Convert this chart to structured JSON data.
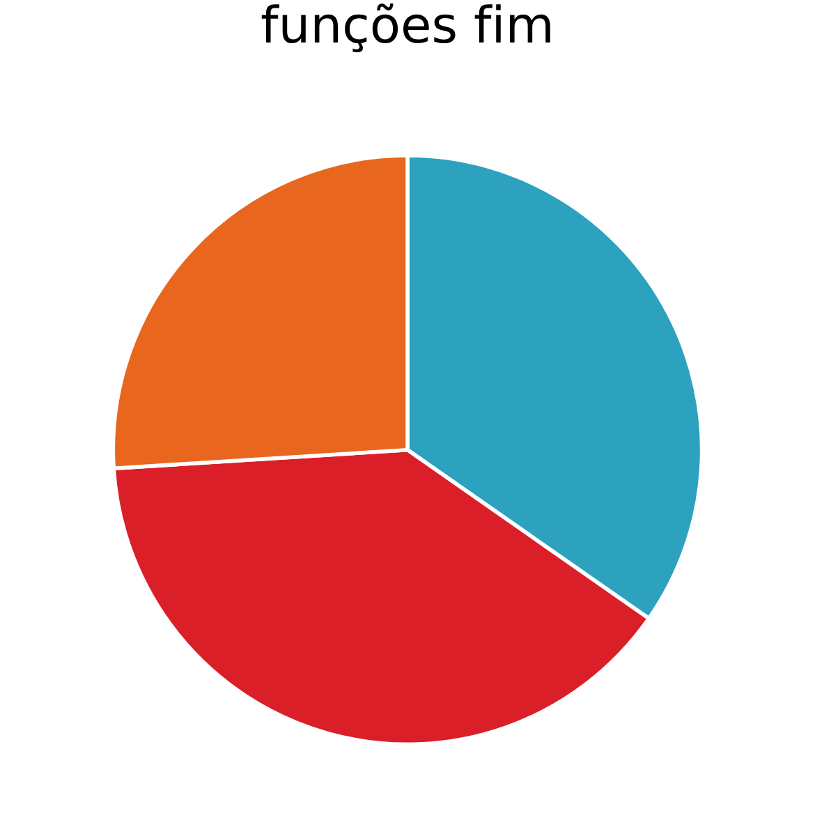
{
  "chart_data": {
    "type": "pie",
    "title": "funções fim",
    "categories": [
      null,
      null,
      null
    ],
    "values": [
      34.7,
      39.3,
      26.0
    ],
    "colors": [
      "#2ca2bf",
      "#da1f29",
      "#e9661e"
    ]
  }
}
